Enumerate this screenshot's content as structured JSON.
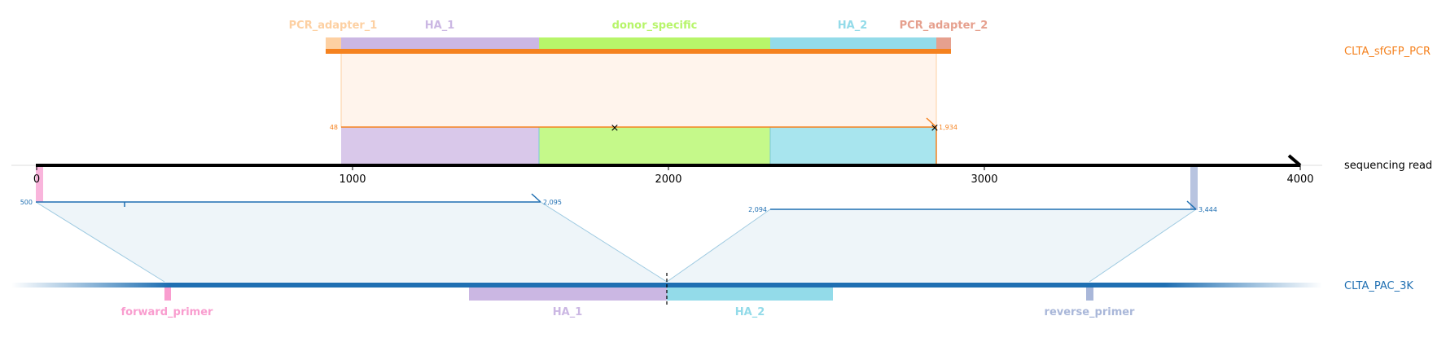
{
  "colors": {
    "pcr_adapter_1": "#fdd0a2",
    "ha_1": "#cbb7e3",
    "donor_specific": "#b7f56a",
    "ha_2": "#93dbe9",
    "pcr_adapter_2": "#e6a08e",
    "forward_primer": "#f99dcf",
    "reverse_primer": "#a9b7d9",
    "pcr_line": "#f5821f",
    "pcr_fill": "#fff4ec",
    "ref_line": "#1f6fb2",
    "ref_fill": "#eef5f9",
    "read_line": "#000000"
  },
  "read": {
    "name": "sequencing read",
    "ticks": [
      "0",
      "1000",
      "2000",
      "3000",
      "4000"
    ],
    "length": 4000
  },
  "pcr_product": {
    "name": "CLTA_sfGFP_PCR",
    "features": [
      "PCR_adapter_1",
      "HA_1",
      "donor_specific",
      "HA_2",
      "PCR_adapter_2"
    ],
    "alignment_start": "48",
    "alignment_end": "1,934"
  },
  "reference": {
    "name": "CLTA_PAC_3K",
    "features": [
      "forward_primer",
      "HA_1",
      "HA_2",
      "reverse_primer"
    ],
    "alignment_1_start": "500",
    "alignment_1_end": "2,095",
    "alignment_2_start": "2,094",
    "alignment_2_end": "3,444"
  }
}
